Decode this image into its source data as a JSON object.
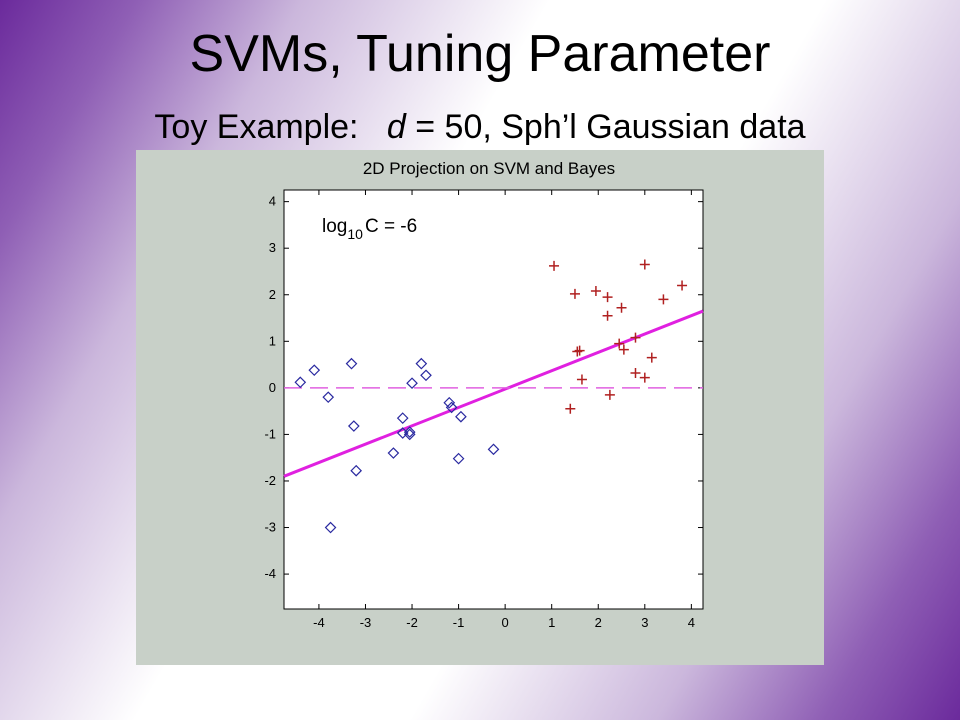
{
  "slide": {
    "title": "SVMs, Tuning Parameter",
    "subtitle_prefix": "Toy Example:",
    "subtitle_var": "d",
    "subtitle_suffix": "= 50,  Sph’l Gaussian data"
  },
  "chart_data": {
    "type": "scatter",
    "title": "2D Projection on SVM and Bayes",
    "xlabel": "",
    "ylabel": "",
    "xlim": [
      -4.75,
      4.25
    ],
    "ylim": [
      -4.75,
      4.25
    ],
    "xticks": [
      -4,
      -3,
      -2,
      -1,
      0,
      1,
      2,
      3,
      4
    ],
    "yticks": [
      -4,
      -3,
      -2,
      -1,
      0,
      1,
      2,
      3,
      4
    ],
    "grid": false,
    "annotation": {
      "base": "log",
      "sub": "10",
      "rest": "C = -6"
    },
    "series": [
      {
        "marker": "circle",
        "color": "#2a2aa0",
        "points": [
          [
            -4.4,
            0.12
          ],
          [
            -4.1,
            0.38
          ],
          [
            -3.8,
            -0.2
          ],
          [
            -3.3,
            0.52
          ],
          [
            -3.25,
            -0.82
          ],
          [
            -3.2,
            -1.78
          ],
          [
            -3.75,
            -3.0
          ],
          [
            -2.4,
            -1.4
          ],
          [
            -2.2,
            -0.65
          ],
          [
            -2.2,
            -0.97
          ],
          [
            -2.05,
            -0.95
          ],
          [
            -2.05,
            -1.0
          ],
          [
            -2.0,
            0.1
          ],
          [
            -1.8,
            0.52
          ],
          [
            -1.7,
            0.27
          ],
          [
            -1.2,
            -0.32
          ],
          [
            -1.15,
            -0.42
          ],
          [
            -0.95,
            -0.62
          ],
          [
            -1.0,
            -1.52
          ],
          [
            -0.25,
            -1.32
          ]
        ]
      },
      {
        "marker": "plus",
        "color": "#b02020",
        "points": [
          [
            1.05,
            2.62
          ],
          [
            1.5,
            2.02
          ],
          [
            1.95,
            2.08
          ],
          [
            2.2,
            1.95
          ],
          [
            2.2,
            1.55
          ],
          [
            2.5,
            1.72
          ],
          [
            3.0,
            2.65
          ],
          [
            3.4,
            1.9
          ],
          [
            3.8,
            2.2
          ],
          [
            1.55,
            0.78
          ],
          [
            1.6,
            0.8
          ],
          [
            1.65,
            0.18
          ],
          [
            2.45,
            0.95
          ],
          [
            2.55,
            0.82
          ],
          [
            2.8,
            1.08
          ],
          [
            3.15,
            0.65
          ],
          [
            2.8,
            0.32
          ],
          [
            3.0,
            0.22
          ],
          [
            1.4,
            -0.45
          ],
          [
            2.25,
            -0.15
          ]
        ]
      }
    ],
    "lines": [
      {
        "name": "",
        "style": "solid",
        "color": "#e020e0",
        "points": [
          [
            -4.75,
            -1.9
          ],
          [
            4.25,
            1.65
          ]
        ]
      },
      {
        "name": "",
        "style": "dashed",
        "color": "#e060e0",
        "points": [
          [
            -4.75,
            0
          ],
          [
            4.25,
            0
          ]
        ]
      }
    ]
  }
}
